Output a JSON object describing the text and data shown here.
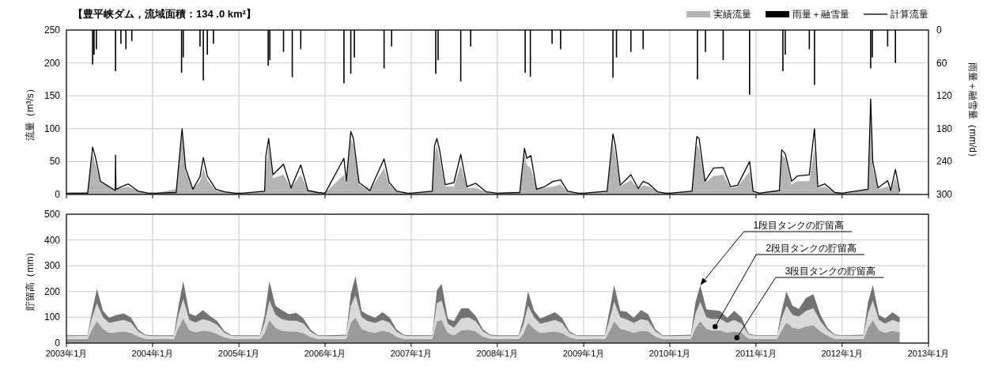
{
  "chart_data": [
    {
      "type": "area",
      "title": "【豊平峡ダム，流域面積：134 .0 km²】",
      "ylabel": "流量（m³/s）",
      "y2label": "雨量＋融雪量（mm/d）",
      "x": [
        "2003-01-01",
        "2003-04-01",
        "2003-04-22",
        "2003-05-05",
        "2003-05-25",
        "2003-07-27",
        "2003-07-28",
        "2003-07-30",
        "2003-09-20",
        "2003-11-01",
        "2003-12-15",
        "2004-01-15",
        "2004-04-10",
        "2004-05-05",
        "2004-05-20",
        "2004-06-20",
        "2004-07-20",
        "2004-08-03",
        "2004-08-20",
        "2004-09-25",
        "2004-11-01",
        "2004-12-15",
        "2005-01-15",
        "2005-04-20",
        "2005-04-25",
        "2005-05-07",
        "2005-05-25",
        "2005-07-09",
        "2005-08-10",
        "2005-09-20",
        "2005-10-20",
        "2005-12-01",
        "2006-01-01",
        "2006-03-22",
        "2006-04-01",
        "2006-04-20",
        "2006-05-01",
        "2006-05-25",
        "2006-07-10",
        "2006-09-08",
        "2006-09-30",
        "2006-11-01",
        "2006-12-15",
        "2007-01-01",
        "2007-03-31",
        "2007-04-10",
        "2007-04-20",
        "2007-05-01",
        "2007-05-25",
        "2007-07-01",
        "2007-07-30",
        "2007-08-25",
        "2007-10-01",
        "2007-11-15",
        "2008-01-01",
        "2008-04-05",
        "2008-04-25",
        "2008-05-05",
        "2008-05-22",
        "2008-06-15",
        "2008-07-20",
        "2008-08-25",
        "2008-09-25",
        "2008-10-25",
        "2008-12-10",
        "2009-01-01",
        "2009-04-10",
        "2009-05-05",
        "2009-05-15",
        "2009-06-05",
        "2009-07-20",
        "2009-08-20",
        "2009-09-10",
        "2009-10-05",
        "2009-11-10",
        "2009-12-15",
        "2010-01-01",
        "2010-04-05",
        "2010-04-25",
        "2010-05-05",
        "2010-05-30",
        "2010-07-05",
        "2010-08-15",
        "2010-09-15",
        "2010-10-15",
        "2010-12-05",
        "2010-12-20",
        "2011-01-15",
        "2011-04-10",
        "2011-04-20",
        "2011-05-05",
        "2011-06-01",
        "2011-06-25",
        "2011-08-15",
        "2011-09-06",
        "2011-09-20",
        "2011-10-20",
        "2011-12-01",
        "2012-01-01",
        "2012-04-20",
        "2012-05-01",
        "2012-05-10",
        "2012-06-01",
        "2012-07-12",
        "2012-07-25",
        "2012-08-14",
        "2012-09-01"
      ],
      "series": [
        {
          "name": "実績流量",
          "color": "#b4b4b4",
          "values": [
            2,
            3,
            62,
            45,
            18,
            6,
            40,
            8,
            12,
            5,
            2,
            2,
            8,
            90,
            35,
            8,
            20,
            40,
            22,
            6,
            4,
            2,
            2,
            5,
            35,
            75,
            25,
            30,
            10,
            30,
            6,
            3,
            2,
            30,
            15,
            85,
            75,
            15,
            6,
            40,
            14,
            5,
            2,
            2,
            5,
            60,
            75,
            55,
            12,
            12,
            45,
            10,
            10,
            4,
            2,
            4,
            62,
            45,
            40,
            8,
            10,
            12,
            15,
            4,
            2,
            2,
            5,
            80,
            60,
            12,
            22,
            8,
            14,
            12,
            4,
            2,
            2,
            5,
            75,
            70,
            18,
            28,
            30,
            10,
            12,
            35,
            5,
            2,
            5,
            60,
            55,
            15,
            20,
            20,
            70,
            10,
            12,
            3,
            2,
            8,
            120,
            40,
            8,
            12,
            5,
            25,
            5
          ]
        },
        {
          "name": "雨量＋融雪量",
          "type": "bar",
          "axis": "y2",
          "color": "#000000",
          "x": [
            "2003-04-22",
            "2003-04-28",
            "2003-05-08",
            "2003-07-28",
            "2003-08-20",
            "2003-09-10",
            "2003-10-05",
            "2004-05-03",
            "2004-05-10",
            "2004-07-20",
            "2004-08-03",
            "2004-08-20",
            "2004-09-15",
            "2005-05-05",
            "2005-05-12",
            "2005-07-09",
            "2005-08-15",
            "2005-09-20",
            "2006-03-22",
            "2006-04-20",
            "2006-05-05",
            "2006-09-08",
            "2006-10-10",
            "2007-04-15",
            "2007-04-25",
            "2007-07-30",
            "2007-09-10",
            "2008-04-28",
            "2008-05-20",
            "2008-08-20",
            "2008-09-25",
            "2009-05-05",
            "2009-05-20",
            "2009-07-20",
            "2009-09-10",
            "2010-04-28",
            "2010-06-01",
            "2010-08-15",
            "2010-12-05",
            "2011-04-25",
            "2011-05-05",
            "2011-08-15",
            "2011-09-06",
            "2012-05-01",
            "2012-05-08",
            "2012-07-12",
            "2012-08-14"
          ],
          "values": [
            63,
            45,
            35,
            75,
            25,
            35,
            20,
            78,
            50,
            30,
            92,
            45,
            25,
            65,
            55,
            40,
            86,
            35,
            97,
            80,
            50,
            70,
            30,
            80,
            55,
            94,
            30,
            78,
            85,
            25,
            35,
            87,
            50,
            40,
            35,
            90,
            40,
            55,
            118,
            75,
            45,
            35,
            100,
            70,
            50,
            30,
            60
          ]
        },
        {
          "name": "計算流量",
          "type": "line",
          "color": "#000000",
          "values": [
            2,
            2,
            72,
            55,
            20,
            6,
            60,
            8,
            16,
            5,
            2,
            2,
            3,
            100,
            40,
            8,
            27,
            56,
            28,
            8,
            4,
            2,
            2,
            5,
            58,
            85,
            30,
            46,
            10,
            45,
            6,
            3,
            2,
            55,
            20,
            96,
            85,
            18,
            6,
            54,
            18,
            5,
            2,
            2,
            5,
            74,
            85,
            68,
            15,
            18,
            61,
            12,
            17,
            4,
            2,
            3,
            70,
            55,
            59,
            8,
            12,
            20,
            22,
            5,
            2,
            2,
            5,
            92,
            75,
            14,
            30,
            9,
            20,
            16,
            4,
            2,
            2,
            5,
            88,
            85,
            20,
            40,
            41,
            12,
            14,
            50,
            5,
            2,
            6,
            68,
            62,
            20,
            28,
            30,
            100,
            12,
            16,
            3,
            2,
            8,
            145,
            50,
            10,
            21,
            6,
            38,
            5
          ]
        }
      ],
      "xlim": [
        "2003-01-01",
        "2013-01-01"
      ],
      "xticks": [
        {
          "value": "2003-01",
          "label": null
        },
        {
          "value": "2004-01",
          "label": null
        },
        {
          "value": "2005-01",
          "label": null
        },
        {
          "value": "2006-01",
          "label": null
        },
        {
          "value": "2007-01",
          "label": null
        },
        {
          "value": "2008-01",
          "label": null
        },
        {
          "value": "2009-01",
          "label": null
        },
        {
          "value": "2010-01",
          "label": null
        },
        {
          "value": "2011-01",
          "label": null
        },
        {
          "value": "2012-01",
          "label": null
        },
        {
          "value": "2013-01",
          "label": null
        }
      ],
      "ylim": [
        0,
        250
      ],
      "yticks": [
        0,
        50,
        100,
        150,
        200,
        250
      ],
      "y2lim": [
        300,
        0
      ],
      "y2ticks": [
        0,
        60,
        120,
        180,
        240,
        300
      ],
      "tick_labels": "y",
      "grid": true,
      "legend": "top right"
    },
    {
      "type": "area",
      "stacked": true,
      "ylabel": "貯留高（mm）",
      "x": [
        "2003-01-01",
        "2003-03-31",
        "2003-04-20",
        "2003-05-10",
        "2003-06-05",
        "2003-07-01",
        "2003-08-01",
        "2003-09-01",
        "2003-10-01",
        "2003-11-01",
        "2003-12-01",
        "2004-01-01",
        "2004-03-31",
        "2004-04-20",
        "2004-05-10",
        "2004-06-05",
        "2004-07-01",
        "2004-08-01",
        "2004-09-01",
        "2004-10-01",
        "2004-11-01",
        "2004-12-01",
        "2005-01-01",
        "2005-03-31",
        "2005-04-20",
        "2005-05-10",
        "2005-06-05",
        "2005-07-01",
        "2005-08-01",
        "2005-09-01",
        "2005-10-01",
        "2005-11-01",
        "2005-12-01",
        "2006-01-01",
        "2006-03-31",
        "2006-04-20",
        "2006-05-10",
        "2006-06-05",
        "2006-07-01",
        "2006-08-01",
        "2006-09-01",
        "2006-10-01",
        "2006-11-01",
        "2006-12-01",
        "2007-01-01",
        "2007-03-31",
        "2007-04-20",
        "2007-05-10",
        "2007-06-05",
        "2007-07-01",
        "2007-08-01",
        "2007-09-01",
        "2007-10-01",
        "2007-11-01",
        "2007-12-01",
        "2008-01-01",
        "2008-03-31",
        "2008-04-20",
        "2008-05-10",
        "2008-06-05",
        "2008-07-01",
        "2008-08-01",
        "2008-09-01",
        "2008-10-01",
        "2008-11-01",
        "2008-12-01",
        "2009-01-01",
        "2009-03-31",
        "2009-04-20",
        "2009-05-10",
        "2009-06-05",
        "2009-07-01",
        "2009-08-01",
        "2009-09-01",
        "2009-10-01",
        "2009-11-01",
        "2009-12-01",
        "2010-01-01",
        "2010-03-31",
        "2010-04-20",
        "2010-05-10",
        "2010-06-05",
        "2010-07-01",
        "2010-08-01",
        "2010-09-01",
        "2010-10-01",
        "2010-11-01",
        "2010-12-01",
        "2011-01-01",
        "2011-03-31",
        "2011-04-20",
        "2011-05-10",
        "2011-06-05",
        "2011-07-01",
        "2011-08-01",
        "2011-09-01",
        "2011-10-01",
        "2011-11-01",
        "2011-12-01",
        "2012-01-01",
        "2012-03-31",
        "2012-04-20",
        "2012-05-10",
        "2012-06-05",
        "2012-07-01",
        "2012-08-01",
        "2012-09-01"
      ],
      "series": [
        {
          "color": "#999999",
          "values": [
            15,
            16,
            55,
            85,
            55,
            40,
            42,
            45,
            40,
            25,
            17,
            15,
            15,
            60,
            95,
            50,
            42,
            48,
            45,
            35,
            22,
            16,
            15,
            15,
            40,
            90,
            60,
            48,
            45,
            45,
            38,
            24,
            16,
            15,
            16,
            80,
            100,
            55,
            45,
            40,
            48,
            42,
            24,
            16,
            15,
            16,
            85,
            90,
            40,
            30,
            50,
            52,
            45,
            25,
            17,
            15,
            15,
            35,
            80,
            55,
            40,
            42,
            45,
            40,
            22,
            16,
            15,
            15,
            45,
            85,
            55,
            50,
            40,
            48,
            45,
            25,
            16,
            15,
            16,
            60,
            85,
            55,
            48,
            50,
            40,
            45,
            40,
            18,
            16,
            16,
            50,
            80,
            60,
            55,
            65,
            70,
            45,
            28,
            17,
            16,
            16,
            60,
            90,
            50,
            40,
            48,
            42
          ]
        },
        {
          "color": "#d9d9d9",
          "values": [
            12,
            12,
            45,
            70,
            45,
            38,
            42,
            45,
            40,
            20,
            13,
            12,
            12,
            50,
            75,
            40,
            38,
            45,
            40,
            35,
            18,
            12,
            12,
            12,
            40,
            75,
            50,
            45,
            42,
            42,
            38,
            20,
            12,
            12,
            12,
            65,
            85,
            45,
            40,
            38,
            42,
            38,
            20,
            13,
            12,
            12,
            70,
            75,
            35,
            30,
            45,
            48,
            40,
            20,
            13,
            12,
            12,
            35,
            65,
            45,
            35,
            40,
            45,
            38,
            18,
            12,
            12,
            12,
            45,
            75,
            45,
            42,
            38,
            45,
            42,
            20,
            12,
            12,
            12,
            55,
            75,
            45,
            45,
            45,
            38,
            45,
            35,
            14,
            12,
            12,
            45,
            65,
            50,
            48,
            60,
            65,
            40,
            22,
            13,
            12,
            12,
            55,
            75,
            40,
            35,
            42,
            38
          ]
        },
        {
          "color": "#737373",
          "values": [
            3,
            3,
            25,
            55,
            25,
            20,
            25,
            25,
            20,
            8,
            3,
            3,
            3,
            35,
            70,
            25,
            25,
            35,
            20,
            15,
            6,
            3,
            3,
            3,
            30,
            75,
            35,
            35,
            25,
            30,
            20,
            8,
            3,
            3,
            4,
            45,
            75,
            25,
            25,
            20,
            30,
            20,
            7,
            3,
            3,
            3,
            50,
            65,
            20,
            25,
            40,
            35,
            20,
            8,
            3,
            3,
            3,
            25,
            55,
            25,
            20,
            25,
            30,
            20,
            6,
            3,
            3,
            3,
            35,
            65,
            25,
            30,
            20,
            35,
            25,
            8,
            3,
            3,
            4,
            45,
            65,
            30,
            35,
            30,
            20,
            35,
            25,
            4,
            3,
            3,
            30,
            55,
            35,
            30,
            50,
            55,
            25,
            8,
            3,
            3,
            4,
            45,
            60,
            20,
            20,
            30,
            20
          ]
        }
      ],
      "xlim": [
        "2003-01-01",
        "2013-01-01"
      ],
      "xticks": [
        {
          "value": "2003-01",
          "label": "2003年1月"
        },
        {
          "value": "2004-01",
          "label": "2004年1月"
        },
        {
          "value": "2005-01",
          "label": "2005年1月"
        },
        {
          "value": "2006-01",
          "label": "2006年1月"
        },
        {
          "value": "2007-01",
          "label": "2007年1月"
        },
        {
          "value": "2008-01",
          "label": "2008年1月"
        },
        {
          "value": "2009-01",
          "label": "2009年1月"
        },
        {
          "value": "2010-01",
          "label": "2010年1月"
        },
        {
          "value": "2011-01",
          "label": "2011年1月"
        },
        {
          "value": "2012-01",
          "label": "2012年1月"
        },
        {
          "value": "2013-01",
          "label": "2013年1月"
        }
      ],
      "ylim": [
        0,
        500
      ],
      "yticks": [
        0,
        100,
        200,
        300,
        400,
        500
      ],
      "grid": true,
      "annotations": [
        {
          "text": "1段目タンクの貯留高",
          "x": "2010-05-10",
          "y": 225
        },
        {
          "text": "2段目タンクの貯留高",
          "x": "2010-07-12",
          "y": 64
        },
        {
          "text": "3段目タンクの貯留高",
          "x": "2010-10-12",
          "y": 21
        }
      ]
    }
  ]
}
